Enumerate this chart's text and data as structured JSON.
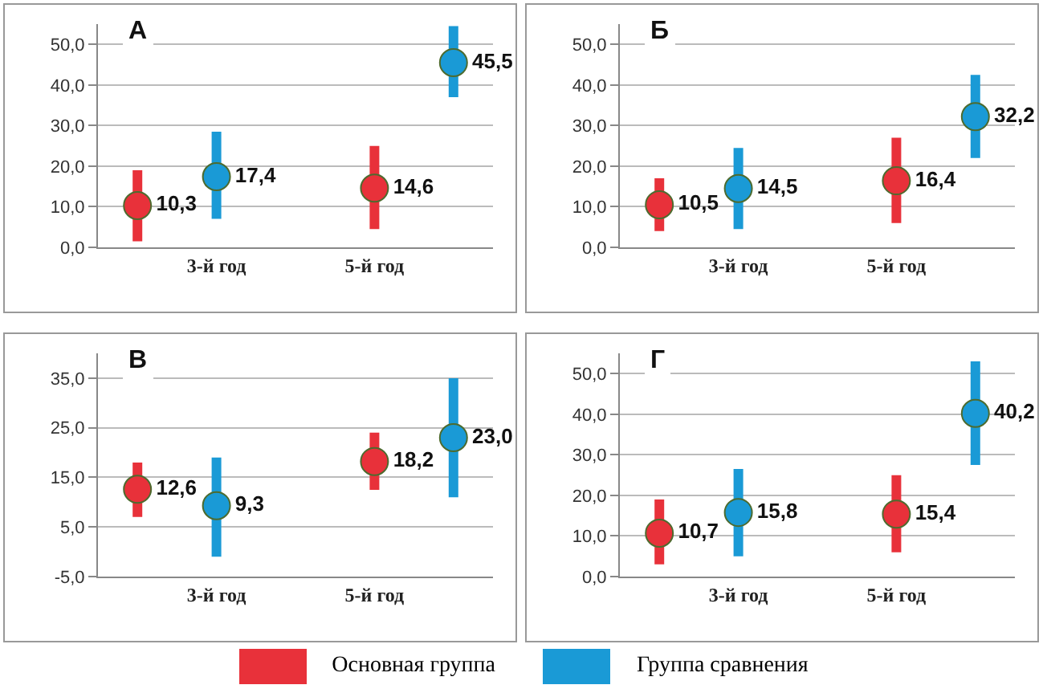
{
  "chart_data": [
    {
      "type": "scatter",
      "title": "А",
      "categories": [
        null,
        "3-й год",
        null,
        "5-й год",
        null
      ],
      "ylim": [
        0,
        55
      ],
      "yticks": [
        {
          "value": 0,
          "label": "0,0"
        },
        {
          "value": 10,
          "label": "10,0"
        },
        {
          "value": 20,
          "label": "20,0"
        },
        {
          "value": 30,
          "label": "30,0"
        },
        {
          "value": 40,
          "label": "40,0"
        },
        {
          "value": 50,
          "label": "50,0"
        }
      ],
      "grid": "y",
      "marker": "circle",
      "legend": "bottom",
      "series": [
        {
          "name": "Основная группа",
          "color": "#e8313a",
          "values": [
            10.3,
            null,
            null,
            14.6,
            null
          ],
          "errors": [
            [
              1.5,
              19
            ],
            null,
            null,
            [
              4.5,
              25
            ],
            null
          ],
          "value_labels": [
            "10,3",
            null,
            null,
            "14,6",
            null
          ]
        },
        {
          "name": "Группа сравнения",
          "color": "#1a9ad6",
          "values": [
            null,
            17.4,
            null,
            null,
            45.5
          ],
          "errors": [
            null,
            [
              7,
              28.5
            ],
            null,
            null,
            [
              37,
              54.5
            ]
          ],
          "value_labels": [
            null,
            "17,4",
            null,
            null,
            "45,5"
          ]
        }
      ]
    },
    {
      "type": "scatter",
      "title": "Б",
      "categories": [
        null,
        "3-й год",
        null,
        "5-й год",
        null
      ],
      "ylim": [
        0,
        55
      ],
      "yticks": [
        {
          "value": 0,
          "label": "0,0"
        },
        {
          "value": 10,
          "label": "10,0"
        },
        {
          "value": 20,
          "label": "20,0"
        },
        {
          "value": 30,
          "label": "30,0"
        },
        {
          "value": 40,
          "label": "40,0"
        },
        {
          "value": 50,
          "label": "50,0"
        }
      ],
      "grid": "y",
      "marker": "circle",
      "series": [
        {
          "color": "#e8313a",
          "values": [
            10.5,
            null,
            null,
            16.4,
            null
          ],
          "errors": [
            [
              4,
              17
            ],
            null,
            null,
            [
              6,
              27
            ],
            null
          ],
          "value_labels": [
            "10,5",
            null,
            null,
            "16,4",
            null
          ]
        },
        {
          "color": "#1a9ad6",
          "values": [
            null,
            14.5,
            null,
            null,
            32.2
          ],
          "errors": [
            null,
            [
              4.5,
              24.5
            ],
            null,
            null,
            [
              22,
              42.5
            ]
          ],
          "value_labels": [
            null,
            "14,5",
            null,
            null,
            "32,2"
          ]
        }
      ]
    },
    {
      "type": "scatter",
      "title": "В",
      "categories": [
        null,
        "3-й год",
        null,
        "5-й год",
        null
      ],
      "ylim": [
        -5,
        40
      ],
      "yticks": [
        {
          "value": -5,
          "label": "-5,0"
        },
        {
          "value": 5,
          "label": "5,0"
        },
        {
          "value": 15,
          "label": "15,0"
        },
        {
          "value": 25,
          "label": "25,0"
        },
        {
          "value": 35,
          "label": "35,0"
        }
      ],
      "grid": "y",
      "marker": "circle",
      "series": [
        {
          "color": "#e8313a",
          "values": [
            12.6,
            null,
            null,
            18.2,
            null
          ],
          "errors": [
            [
              7,
              18
            ],
            null,
            null,
            [
              12.5,
              24
            ],
            null
          ],
          "value_labels": [
            "12,6",
            null,
            null,
            "18,2",
            null
          ]
        },
        {
          "color": "#1a9ad6",
          "values": [
            null,
            9.3,
            null,
            null,
            23.0
          ],
          "errors": [
            null,
            [
              -1,
              19
            ],
            null,
            null,
            [
              11,
              35
            ]
          ],
          "value_labels": [
            null,
            "9,3",
            null,
            null,
            "23,0"
          ]
        }
      ]
    },
    {
      "type": "scatter",
      "title": "Г",
      "categories": [
        null,
        "3-й год",
        null,
        "5-й год",
        null
      ],
      "ylim": [
        0,
        55
      ],
      "yticks": [
        {
          "value": 0,
          "label": "0,0"
        },
        {
          "value": 10,
          "label": "10,0"
        },
        {
          "value": 20,
          "label": "20,0"
        },
        {
          "value": 30,
          "label": "30,0"
        },
        {
          "value": 40,
          "label": "40,0"
        },
        {
          "value": 50,
          "label": "50,0"
        }
      ],
      "grid": "y",
      "marker": "circle",
      "series": [
        {
          "color": "#e8313a",
          "values": [
            10.7,
            null,
            null,
            15.4,
            null
          ],
          "errors": [
            [
              3,
              19
            ],
            null,
            null,
            [
              6,
              25
            ],
            null
          ],
          "value_labels": [
            "10,7",
            null,
            null,
            "15,4",
            null
          ]
        },
        {
          "color": "#1a9ad6",
          "values": [
            null,
            15.8,
            null,
            null,
            40.2
          ],
          "errors": [
            null,
            [
              5,
              26.5
            ],
            null,
            null,
            [
              27.5,
              53
            ]
          ],
          "value_labels": [
            null,
            "15,8",
            null,
            null,
            "40,2"
          ]
        }
      ]
    }
  ]
}
